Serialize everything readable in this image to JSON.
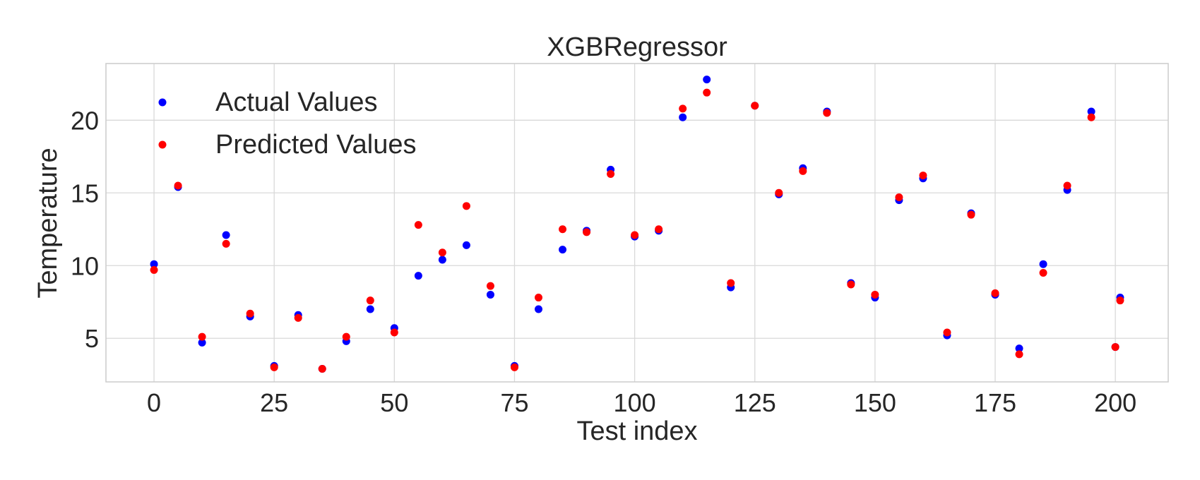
{
  "chart_data": {
    "type": "scatter",
    "title": "XGBRegressor",
    "xlabel": "Test index",
    "ylabel": "Temperature",
    "xlim": [
      -10,
      211
    ],
    "ylim": [
      2.0,
      23.9
    ],
    "xticks": [
      0,
      25,
      50,
      75,
      100,
      125,
      150,
      175,
      200
    ],
    "yticks": [
      5,
      10,
      15,
      20
    ],
    "grid": true,
    "legend_position": "top-left",
    "x": [
      0,
      5,
      10,
      15,
      20,
      25,
      30,
      35,
      40,
      45,
      50,
      55,
      60,
      65,
      70,
      75,
      80,
      85,
      90,
      95,
      100,
      105,
      110,
      115,
      120,
      125,
      130,
      135,
      140,
      145,
      150,
      155,
      160,
      165,
      170,
      175,
      180,
      185,
      190,
      195,
      200,
      201
    ],
    "series": [
      {
        "name": "Actual Values",
        "color": "#0000ff",
        "values": [
          10.1,
          15.4,
          4.7,
          12.1,
          6.5,
          3.1,
          6.6,
          2.9,
          4.8,
          7.0,
          5.7,
          9.3,
          10.4,
          11.4,
          8.0,
          3.1,
          7.0,
          11.1,
          12.4,
          16.6,
          12.0,
          12.4,
          20.2,
          22.8,
          8.5,
          21.0,
          14.9,
          16.7,
          20.6,
          8.8,
          7.8,
          14.5,
          16.0,
          5.2,
          13.6,
          8.0,
          4.3,
          10.1,
          15.2,
          20.6,
          4.4,
          7.8
        ]
      },
      {
        "name": "Predicted Values",
        "color": "#ff0000",
        "values": [
          9.7,
          15.5,
          5.1,
          11.5,
          6.7,
          3.0,
          6.4,
          2.9,
          5.1,
          7.6,
          5.4,
          12.8,
          10.9,
          14.1,
          8.6,
          3.0,
          7.8,
          12.5,
          12.3,
          16.3,
          12.1,
          12.5,
          20.8,
          21.9,
          8.8,
          21.0,
          15.0,
          16.5,
          20.5,
          8.7,
          8.0,
          14.7,
          16.2,
          5.4,
          13.5,
          8.1,
          3.9,
          9.5,
          15.5,
          20.2,
          4.4,
          7.6
        ]
      }
    ]
  }
}
